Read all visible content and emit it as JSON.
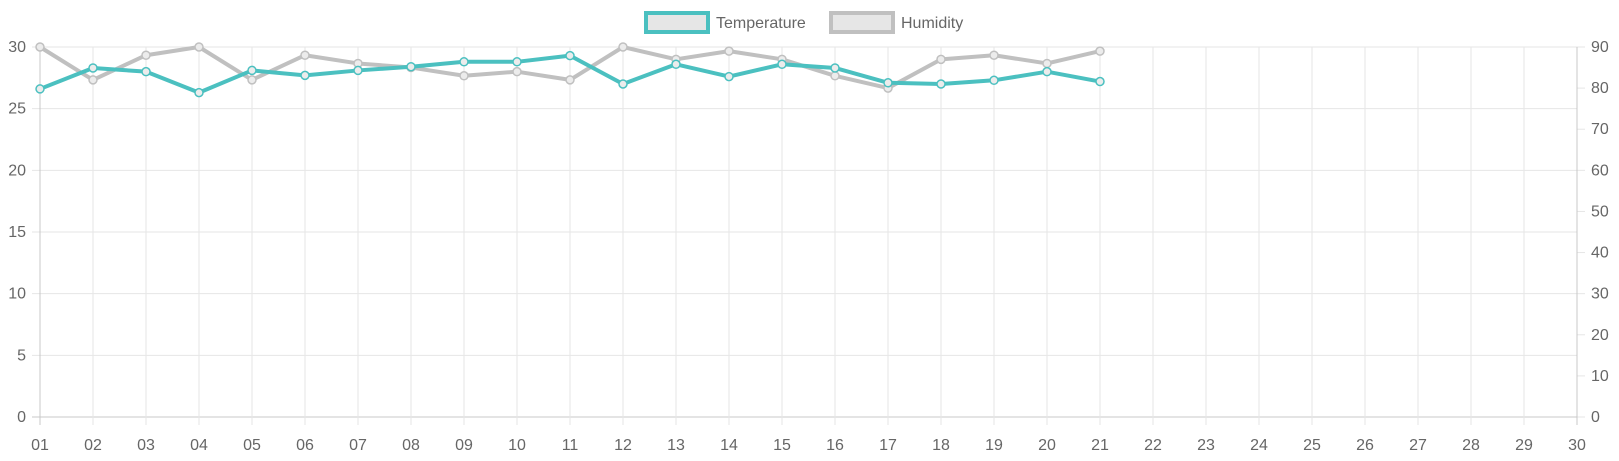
{
  "chart_data": {
    "type": "line",
    "categories": [
      "01",
      "02",
      "03",
      "04",
      "05",
      "06",
      "07",
      "08",
      "09",
      "10",
      "11",
      "12",
      "13",
      "14",
      "15",
      "16",
      "17",
      "18",
      "19",
      "20",
      "21",
      "22",
      "23",
      "24",
      "25",
      "26",
      "27",
      "28",
      "29",
      "30"
    ],
    "series": [
      {
        "name": "Temperature",
        "axis": "left",
        "color": "#4bc0c0",
        "values": [
          26.6,
          28.3,
          28.0,
          26.3,
          28.1,
          27.7,
          28.1,
          28.4,
          28.8,
          28.8,
          29.3,
          27.0,
          28.6,
          27.6,
          28.6,
          28.3,
          27.1,
          27.0,
          27.3,
          28.0,
          27.2,
          null,
          null,
          null,
          null,
          null,
          null,
          null,
          null,
          null
        ]
      },
      {
        "name": "Humidity",
        "axis": "right",
        "color": "#c0c0c0",
        "values": [
          90,
          82,
          88,
          90,
          82,
          88,
          86,
          85,
          83,
          84,
          82,
          90,
          87,
          89,
          87,
          83,
          80,
          87,
          88,
          86,
          89,
          null,
          null,
          null,
          null,
          null,
          null,
          null,
          null,
          null
        ]
      }
    ],
    "y_left": {
      "min": 0,
      "max": 30,
      "step": 5,
      "ticks": [
        "0",
        "5",
        "10",
        "15",
        "20",
        "25",
        "30"
      ]
    },
    "y_right": {
      "min": 0,
      "max": 90,
      "step": 10,
      "ticks": [
        "0",
        "10",
        "20",
        "30",
        "40",
        "50",
        "60",
        "70",
        "80",
        "90"
      ]
    },
    "grid": true,
    "legend_position": "top-center",
    "colors": {
      "grid": "#e6e6e6",
      "axis": "#c8c8c8",
      "legend_fill": "#e6e6e6"
    }
  }
}
